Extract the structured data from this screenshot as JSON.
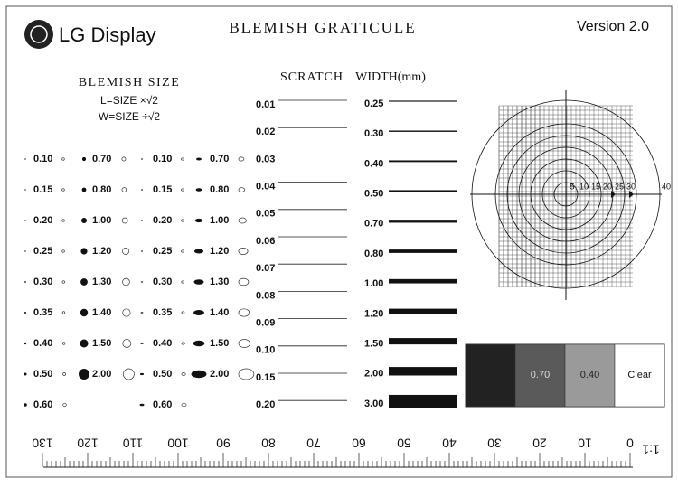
{
  "header": {
    "logo": "LG Display",
    "title": "BLEMISH GRATICULE",
    "version": "Version 2.0"
  },
  "blemish": {
    "title": "BLEMISH SIZE",
    "formula_l": "L=SIZE ×√2",
    "formula_w": "W=SIZE ÷√2",
    "dots_small": [
      "0.10",
      "0.15",
      "0.20",
      "0.25",
      "0.30",
      "0.35",
      "0.40",
      "0.50",
      "0.60"
    ],
    "dots_large": [
      "0.70",
      "0.80",
      "1.00",
      "1.20",
      "1.30",
      "1.40",
      "1.50",
      "2.00"
    ],
    "ovals_small": [
      "0.10",
      "0.15",
      "0.20",
      "0.25",
      "0.30",
      "0.35",
      "0.40",
      "0.50",
      "0.60"
    ],
    "ovals_large": [
      "0.70",
      "0.80",
      "1.00",
      "1.20",
      "1.30",
      "1.40",
      "1.50",
      "2.00"
    ]
  },
  "scratch": {
    "title": "SCRATCH",
    "sizes": [
      "0.01",
      "0.02",
      "0.03",
      "0.04",
      "0.05",
      "0.06",
      "0.07",
      "0.08",
      "0.09",
      "0.10",
      "0.15",
      "0.20"
    ]
  },
  "width": {
    "title": "WIDTH(mm)",
    "sizes": [
      "0.25",
      "0.30",
      "0.40",
      "0.50",
      "0.70",
      "0.80",
      "1.00",
      "1.20",
      "1.50",
      "2.00",
      "3.00"
    ]
  },
  "graticule": {
    "rings": [
      "5",
      "10",
      "15",
      "20",
      "25",
      "30",
      "40"
    ]
  },
  "swatches": [
    "0.70",
    "0.40",
    "Clear"
  ],
  "ruler": {
    "labels": [
      "0",
      "10",
      "20",
      "30",
      "40",
      "50",
      "60",
      "70",
      "80",
      "90",
      "100",
      "110",
      "120",
      "130"
    ],
    "scale": "1:1"
  }
}
